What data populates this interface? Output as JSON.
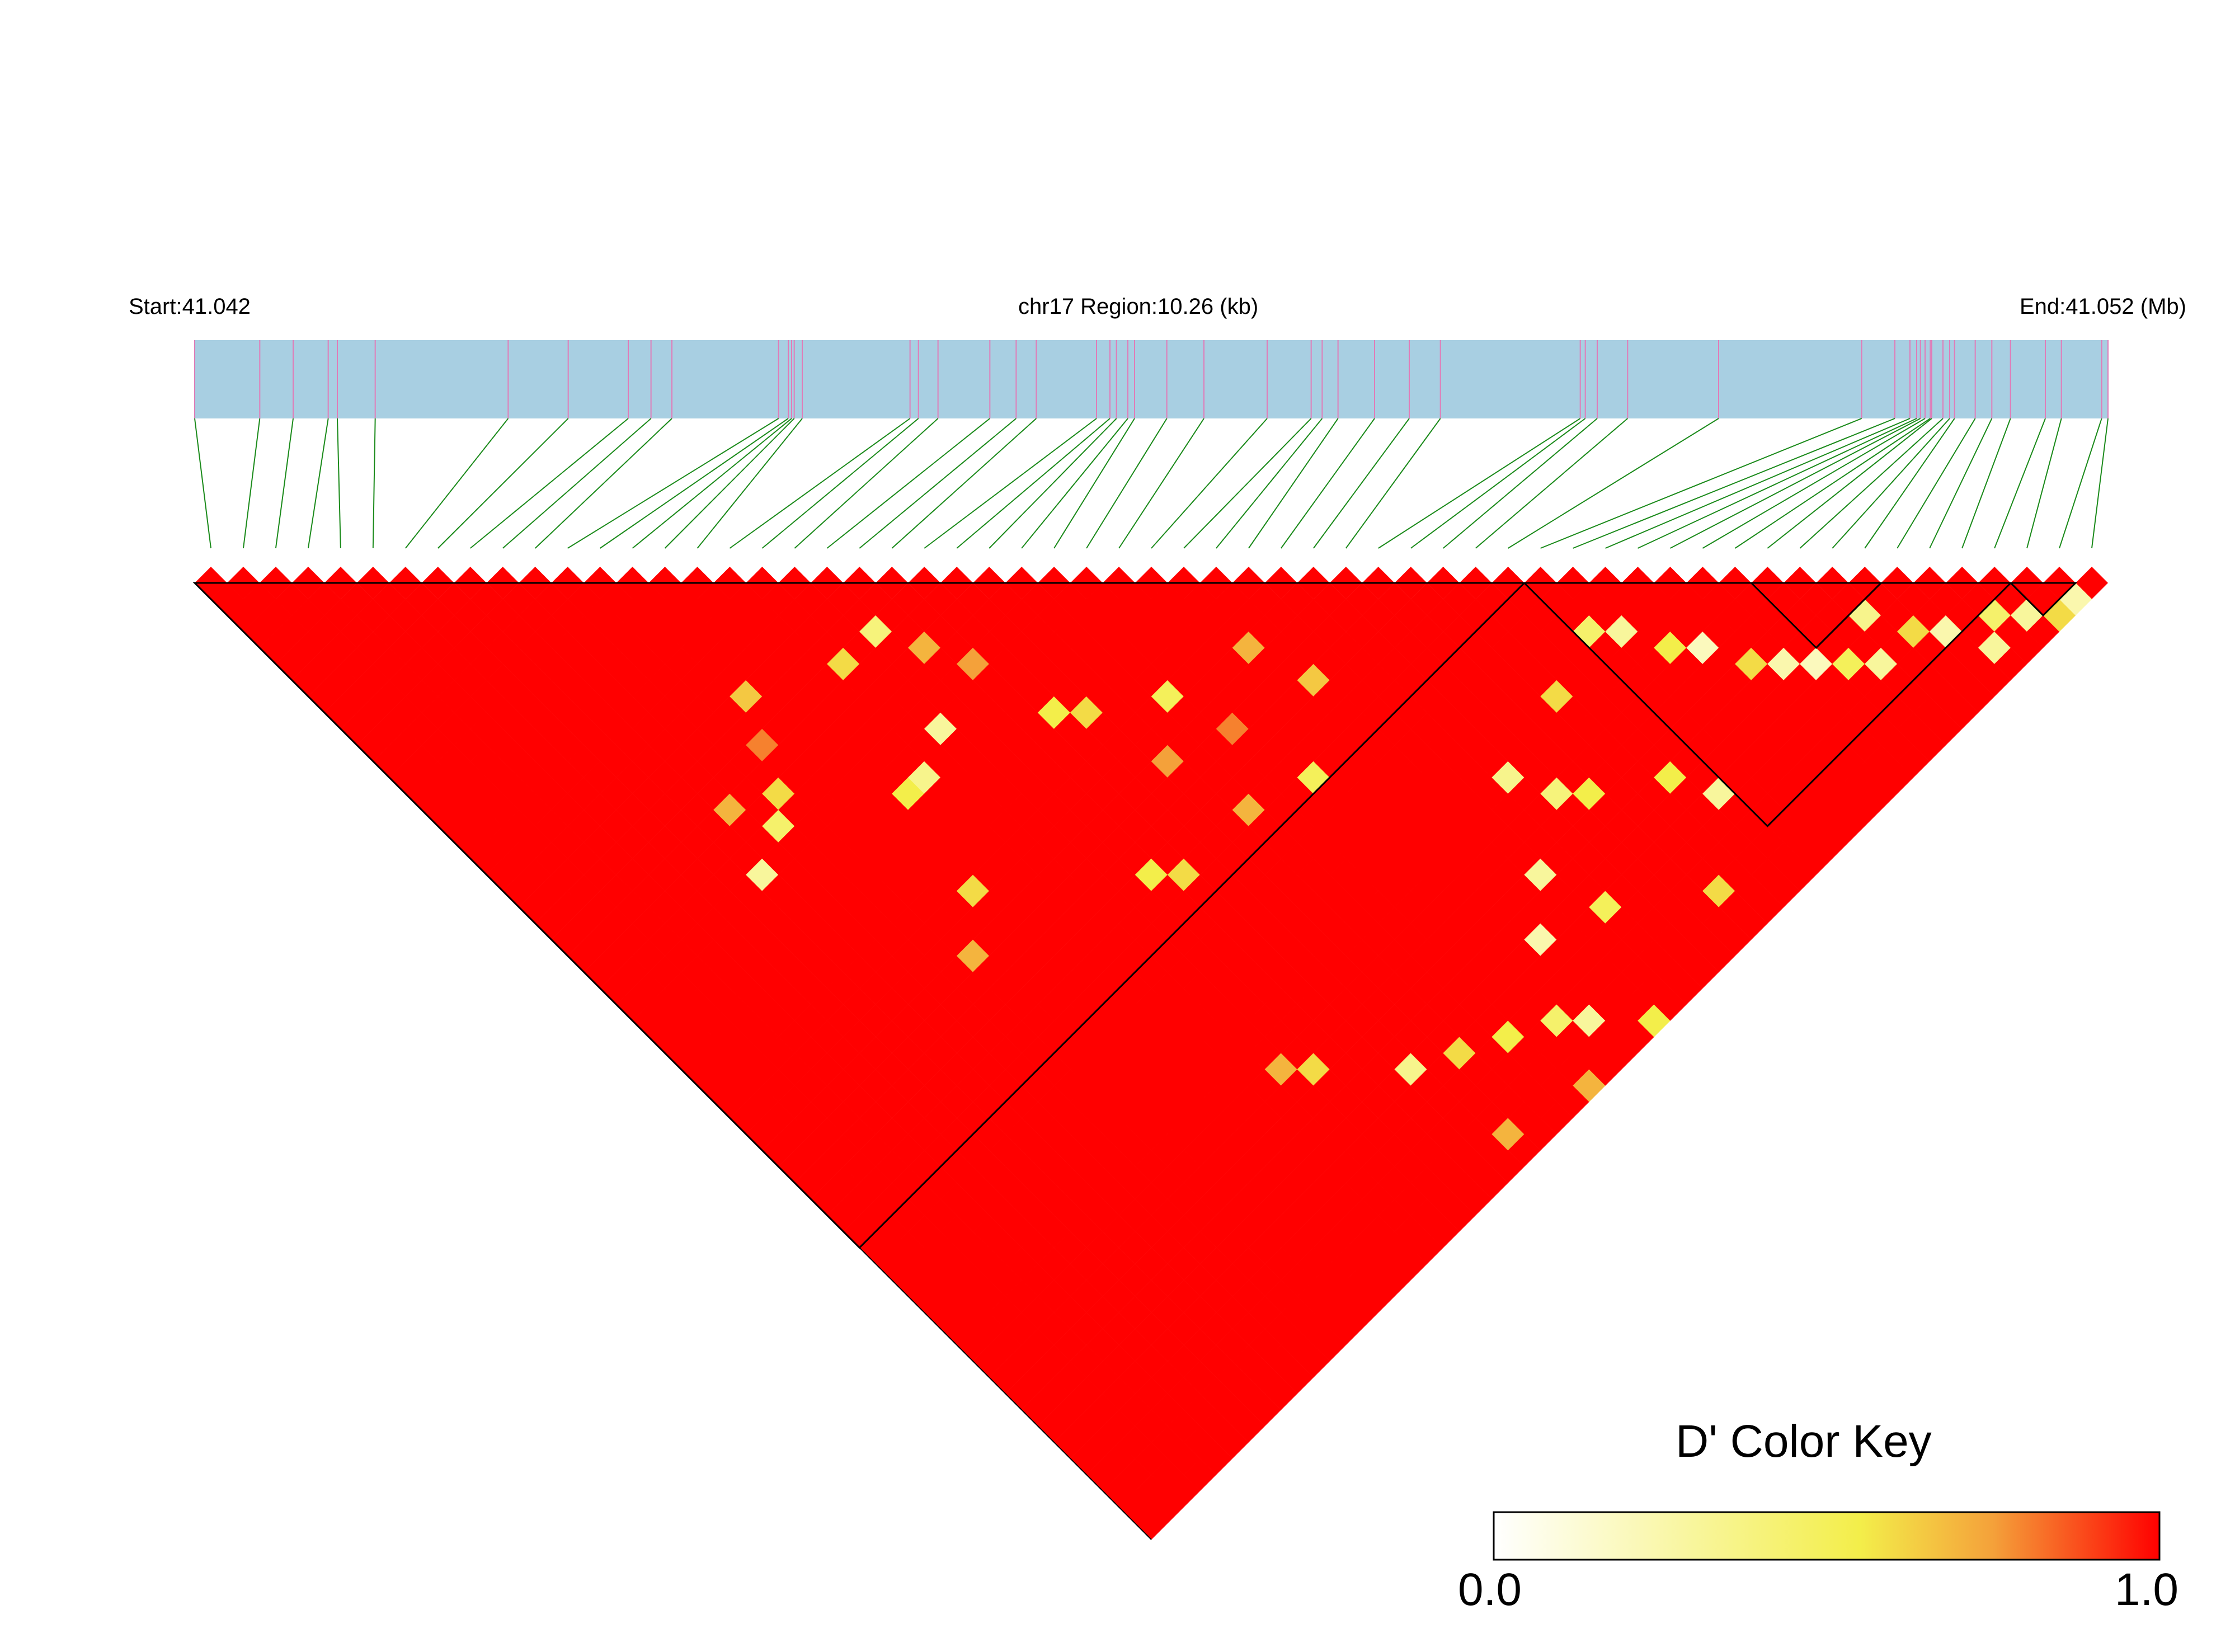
{
  "header": {
    "start_label": "Start:41.042",
    "region_label": "chr17 Region:10.26 (kb)",
    "end_label": "End:41.052 (Mb)"
  },
  "color_key": {
    "title": "D' Color Key",
    "min_label": "0.0",
    "max_label": "1.0",
    "gradient": [
      "#ffffff",
      "#f3ee4a",
      "#f4a13a",
      "#ff0000"
    ]
  },
  "chart_data": {
    "type": "heatmap",
    "description_type": "LD heatmap (D')",
    "chromosome": "chr17",
    "region_kb": 10.26,
    "start_mb": 41.042,
    "end_mb": 41.052,
    "n_snps": 59,
    "value_range": [
      0,
      1
    ],
    "default_value": 1.0,
    "snp_positions_kb": [
      0,
      0.349,
      0.528,
      0.716,
      0.765,
      0.968,
      1.681,
      2.003,
      2.325,
      2.447,
      2.559,
      3.131,
      3.183,
      3.201,
      3.215,
      3.258,
      3.836,
      3.881,
      3.986,
      4.264,
      4.405,
      4.513,
      4.836,
      4.908,
      4.943,
      5.004,
      5.04,
      5.213,
      5.412,
      5.751,
      5.987,
      6.046,
      6.131,
      6.327,
      6.513,
      6.68,
      7.43,
      7.457,
      7.521,
      7.684,
      8.172,
      8.939,
      9.117,
      9.198,
      9.234,
      9.254,
      9.279,
      9.307,
      9.315,
      9.375,
      9.411,
      9.437,
      9.548,
      9.637,
      9.737,
      9.924,
      10.01,
      10.226,
      10.26
    ],
    "blocks": [
      [
        0,
        41
      ],
      [
        41,
        56
      ],
      [
        48,
        52
      ],
      [
        56,
        58
      ]
    ],
    "cells": [
      {
        "i": 17,
        "j": 22,
        "v": 0.6
      },
      {
        "i": 19,
        "j": 22,
        "v": 0.4
      },
      {
        "i": 20,
        "j": 24,
        "v": 0.7
      },
      {
        "i": 21,
        "j": 26,
        "v": 0.75
      },
      {
        "i": 18,
        "j": 27,
        "v": 0.3
      },
      {
        "i": 16,
        "j": 28,
        "v": 0.35
      },
      {
        "i": 12,
        "j": 22,
        "v": 0.8
      },
      {
        "i": 15,
        "j": 28,
        "v": 0.55
      },
      {
        "i": 11,
        "j": 24,
        "v": 0.6
      },
      {
        "i": 10,
        "j": 25,
        "v": 0.45
      },
      {
        "i": 8,
        "j": 26,
        "v": 0.3
      },
      {
        "i": 9,
        "j": 23,
        "v": 0.7
      },
      {
        "i": 13,
        "j": 20,
        "v": 0.65
      },
      {
        "i": 22,
        "j": 30,
        "v": 0.55
      },
      {
        "i": 23,
        "j": 31,
        "v": 0.6
      },
      {
        "i": 26,
        "j": 33,
        "v": 0.5
      },
      {
        "i": 24,
        "j": 35,
        "v": 0.75
      },
      {
        "i": 27,
        "j": 36,
        "v": 0.8
      },
      {
        "i": 30,
        "j": 34,
        "v": 0.7
      },
      {
        "i": 31,
        "j": 37,
        "v": 0.65
      },
      {
        "i": 14,
        "j": 33,
        "v": 0.6
      },
      {
        "i": 12,
        "j": 35,
        "v": 0.7
      },
      {
        "i": 20,
        "j": 38,
        "v": 0.55
      },
      {
        "i": 21,
        "j": 39,
        "v": 0.6
      },
      {
        "i": 25,
        "j": 39,
        "v": 0.7
      },
      {
        "i": 28,
        "j": 40,
        "v": 0.5
      },
      {
        "i": 41,
        "j": 44,
        "v": 0.45
      },
      {
        "i": 42,
        "j": 45,
        "v": 0.3
      },
      {
        "i": 43,
        "j": 47,
        "v": 0.55
      },
      {
        "i": 44,
        "j": 48,
        "v": 0.2
      },
      {
        "i": 45,
        "j": 50,
        "v": 0.6
      },
      {
        "i": 46,
        "j": 51,
        "v": 0.25
      },
      {
        "i": 47,
        "j": 52,
        "v": 0.2
      },
      {
        "i": 48,
        "j": 53,
        "v": 0.5
      },
      {
        "i": 49,
        "j": 54,
        "v": 0.3
      },
      {
        "i": 50,
        "j": 52,
        "v": 0.35
      },
      {
        "i": 51,
        "j": 54,
        "v": 0.6
      },
      {
        "i": 52,
        "j": 55,
        "v": 0.25
      },
      {
        "i": 53,
        "j": 57,
        "v": 0.3
      },
      {
        "i": 54,
        "j": 56,
        "v": 0.45
      },
      {
        "i": 55,
        "j": 57,
        "v": 0.3
      },
      {
        "i": 56,
        "j": 58,
        "v": 0.6
      },
      {
        "i": 57,
        "j": 58,
        "v": 0.25
      },
      {
        "i": 34,
        "j": 46,
        "v": 0.35
      },
      {
        "i": 35,
        "j": 48,
        "v": 0.4
      },
      {
        "i": 36,
        "j": 49,
        "v": 0.55
      },
      {
        "i": 32,
        "j": 50,
        "v": 0.3
      },
      {
        "i": 33,
        "j": 53,
        "v": 0.5
      },
      {
        "i": 30,
        "j": 52,
        "v": 0.25
      },
      {
        "i": 28,
        "j": 55,
        "v": 0.45
      },
      {
        "i": 29,
        "j": 56,
        "v": 0.3
      },
      {
        "i": 26,
        "j": 54,
        "v": 0.55
      },
      {
        "i": 27,
        "j": 58,
        "v": 0.7
      },
      {
        "i": 24,
        "j": 53,
        "v": 0.6
      },
      {
        "i": 22,
        "j": 52,
        "v": 0.35
      },
      {
        "i": 23,
        "j": 57,
        "v": 0.7
      },
      {
        "i": 38,
        "j": 45,
        "v": 0.6
      },
      {
        "i": 39,
        "j": 51,
        "v": 0.55
      },
      {
        "i": 40,
        "j": 53,
        "v": 0.3
      },
      {
        "i": 37,
        "j": 56,
        "v": 0.6
      },
      {
        "i": 31,
        "j": 58,
        "v": 0.55
      },
      {
        "i": 19,
        "j": 49,
        "v": 0.6
      },
      {
        "i": 18,
        "j": 48,
        "v": 0.7
      }
    ]
  }
}
